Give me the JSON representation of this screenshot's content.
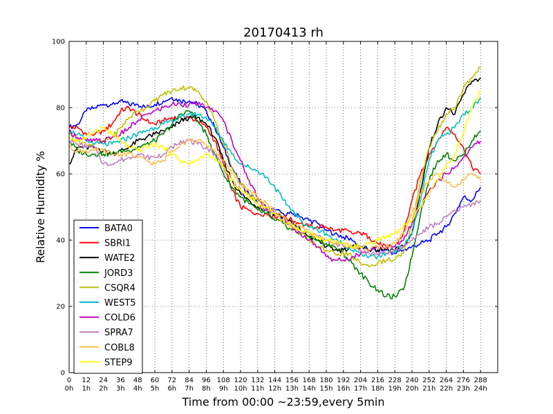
{
  "chart_data": {
    "type": "line",
    "title": "20170413 rh",
    "xlabel": "Time from 00:00 ~23:59,every 5min",
    "ylabel": "Relative Humidity %",
    "xlim": [
      0,
      300
    ],
    "ylim": [
      0,
      100
    ],
    "grid": true,
    "legend_position": "lower-left",
    "x_ticks": [
      {
        "value": 0,
        "line1": "0",
        "line2": "0h"
      },
      {
        "value": 12,
        "line1": "12",
        "line2": "1h"
      },
      {
        "value": 24,
        "line1": "24",
        "line2": "2h"
      },
      {
        "value": 36,
        "line1": "36",
        "line2": "3h"
      },
      {
        "value": 48,
        "line1": "48",
        "line2": "4h"
      },
      {
        "value": 60,
        "line1": "60",
        "line2": "5h"
      },
      {
        "value": 72,
        "line1": "72",
        "line2": "6h"
      },
      {
        "value": 84,
        "line1": "84",
        "line2": "7h"
      },
      {
        "value": 96,
        "line1": "96",
        "line2": "8h"
      },
      {
        "value": 108,
        "line1": "108",
        "line2": "9h"
      },
      {
        "value": 120,
        "line1": "120",
        "line2": "10h"
      },
      {
        "value": 132,
        "line1": "132",
        "line2": "11h"
      },
      {
        "value": 144,
        "line1": "144",
        "line2": "12h"
      },
      {
        "value": 156,
        "line1": "156",
        "line2": "13h"
      },
      {
        "value": 168,
        "line1": "168",
        "line2": "14h"
      },
      {
        "value": 180,
        "line1": "180",
        "line2": "15h"
      },
      {
        "value": 192,
        "line1": "192",
        "line2": "16h"
      },
      {
        "value": 204,
        "line1": "204",
        "line2": "17h"
      },
      {
        "value": 216,
        "line1": "216",
        "line2": "18h"
      },
      {
        "value": 228,
        "line1": "228",
        "line2": "19h"
      },
      {
        "value": 240,
        "line1": "240",
        "line2": "20h"
      },
      {
        "value": 252,
        "line1": "252",
        "line2": "21h"
      },
      {
        "value": 264,
        "line1": "264",
        "line2": "22h"
      },
      {
        "value": 276,
        "line1": "276",
        "line2": "23h"
      },
      {
        "value": 288,
        "line1": "288",
        "line2": "24h"
      }
    ],
    "y_ticks": [
      0,
      20,
      40,
      60,
      80,
      100
    ],
    "series": [
      {
        "name": "BATA0",
        "color": "#0000ff",
        "x": [
          0,
          6,
          12,
          18,
          24,
          30,
          36,
          42,
          48,
          54,
          60,
          66,
          72,
          78,
          84,
          90,
          96,
          102,
          108,
          114,
          120,
          126,
          132,
          138,
          144,
          150,
          156,
          162,
          168,
          174,
          180,
          186,
          192,
          198,
          204,
          210,
          216,
          222,
          228,
          234,
          240,
          246,
          252,
          258,
          264,
          270,
          276,
          282,
          288
        ],
        "y": [
          74,
          75,
          79,
          80,
          81,
          81,
          82,
          81,
          81,
          80,
          81,
          82,
          83,
          82,
          82,
          81,
          79,
          74,
          68,
          62,
          57,
          54,
          51,
          49,
          49,
          48,
          48,
          47,
          46,
          45,
          43,
          42,
          41,
          40,
          38,
          37,
          37,
          37,
          36,
          37,
          38,
          39,
          40,
          42,
          44,
          48,
          53,
          52,
          56
        ]
      },
      {
        "name": "SBRI1",
        "color": "#ff0000",
        "x": [
          0,
          6,
          12,
          18,
          24,
          30,
          36,
          42,
          48,
          54,
          60,
          66,
          72,
          78,
          84,
          90,
          96,
          102,
          108,
          114,
          120,
          126,
          132,
          138,
          144,
          150,
          156,
          162,
          168,
          174,
          180,
          186,
          192,
          198,
          204,
          210,
          216,
          222,
          228,
          234,
          240,
          246,
          252,
          258,
          264,
          270,
          276,
          282,
          288
        ],
        "y": [
          74,
          74,
          72,
          72,
          73,
          75,
          79,
          80,
          78,
          76,
          75,
          76,
          77,
          77,
          77,
          76,
          74,
          70,
          63,
          55,
          50,
          49,
          48,
          48,
          47,
          47,
          46,
          45,
          44,
          44,
          44,
          43,
          43,
          42,
          42,
          41,
          39,
          38,
          38,
          42,
          52,
          60,
          66,
          70,
          74,
          72,
          68,
          62,
          60
        ]
      },
      {
        "name": "WATE2",
        "color": "#000000",
        "x": [
          0,
          6,
          12,
          18,
          24,
          30,
          36,
          42,
          48,
          54,
          60,
          66,
          72,
          78,
          84,
          90,
          96,
          102,
          108,
          114,
          120,
          126,
          132,
          138,
          144,
          150,
          156,
          162,
          168,
          174,
          180,
          186,
          192,
          198,
          204,
          210,
          216,
          222,
          228,
          234,
          240,
          246,
          252,
          258,
          264,
          270,
          276,
          282,
          288
        ],
        "y": [
          63,
          68,
          68,
          68,
          67,
          66,
          67,
          68,
          70,
          71,
          72,
          73,
          74,
          76,
          77,
          77,
          75,
          71,
          64,
          58,
          54,
          52,
          50,
          49,
          48,
          47,
          45,
          43,
          41,
          40,
          38,
          37,
          37,
          38,
          38,
          37,
          37,
          37,
          37,
          38,
          42,
          55,
          68,
          75,
          80,
          78,
          84,
          88,
          89
        ]
      },
      {
        "name": "JORD3",
        "color": "#008000",
        "x": [
          0,
          6,
          12,
          18,
          24,
          30,
          36,
          42,
          48,
          54,
          60,
          66,
          72,
          78,
          84,
          90,
          96,
          102,
          108,
          114,
          120,
          126,
          132,
          138,
          144,
          150,
          156,
          162,
          168,
          174,
          180,
          186,
          192,
          198,
          204,
          210,
          216,
          222,
          228,
          234,
          240,
          246,
          252,
          258,
          264,
          270,
          276,
          282,
          288
        ],
        "y": [
          70,
          67,
          66,
          66,
          66,
          66,
          67,
          67,
          68,
          69,
          70,
          72,
          75,
          78,
          79,
          76,
          72,
          66,
          60,
          56,
          53,
          51,
          49,
          48,
          46,
          45,
          43,
          42,
          41,
          40,
          39,
          38,
          36,
          33,
          30,
          27,
          25,
          23,
          23,
          25,
          35,
          48,
          58,
          64,
          66,
          64,
          66,
          70,
          73
        ]
      },
      {
        "name": "CSQR4",
        "color": "#bfbf00",
        "x": [
          0,
          6,
          12,
          18,
          24,
          30,
          36,
          42,
          48,
          54,
          60,
          66,
          72,
          78,
          84,
          90,
          96,
          102,
          108,
          114,
          120,
          126,
          132,
          138,
          144,
          150,
          156,
          162,
          168,
          174,
          180,
          186,
          192,
          198,
          204,
          210,
          216,
          222,
          228,
          234,
          240,
          246,
          252,
          258,
          264,
          270,
          276,
          282,
          288
        ],
        "y": [
          72,
          70,
          69,
          69,
          70,
          71,
          74,
          77,
          79,
          80,
          82,
          84,
          85,
          86,
          86,
          85,
          82,
          76,
          69,
          62,
          57,
          54,
          52,
          50,
          48,
          46,
          44,
          42,
          40,
          38,
          37,
          36,
          36,
          35,
          33,
          32,
          33,
          34,
          34,
          36,
          45,
          58,
          68,
          73,
          78,
          80,
          86,
          89,
          92
        ]
      },
      {
        "name": "WEST5",
        "color": "#00bfbf",
        "x": [
          0,
          6,
          12,
          18,
          24,
          30,
          36,
          42,
          48,
          54,
          60,
          66,
          72,
          78,
          84,
          90,
          96,
          102,
          108,
          114,
          120,
          126,
          132,
          138,
          144,
          150,
          156,
          162,
          168,
          174,
          180,
          186,
          192,
          198,
          204,
          210,
          216,
          222,
          228,
          234,
          240,
          246,
          252,
          258,
          264,
          270,
          276,
          282,
          288
        ],
        "y": [
          73,
          72,
          70,
          69,
          69,
          69,
          70,
          71,
          72,
          73,
          74,
          75,
          76,
          77,
          78,
          78,
          77,
          74,
          70,
          66,
          63,
          62,
          61,
          59,
          56,
          52,
          49,
          46,
          44,
          43,
          42,
          40,
          39,
          37,
          36,
          35,
          35,
          36,
          37,
          38,
          42,
          52,
          64,
          70,
          72,
          74,
          78,
          80,
          83
        ]
      },
      {
        "name": "COLD6",
        "color": "#bf00bf",
        "x": [
          0,
          6,
          12,
          18,
          24,
          30,
          36,
          42,
          48,
          54,
          60,
          66,
          72,
          78,
          84,
          90,
          96,
          102,
          108,
          114,
          120,
          126,
          132,
          138,
          144,
          150,
          156,
          162,
          168,
          174,
          180,
          186,
          192,
          198,
          204,
          210,
          216,
          222,
          228,
          234,
          240,
          246,
          252,
          258,
          264,
          270,
          276,
          282,
          288
        ],
        "y": [
          73,
          71,
          70,
          70,
          70,
          71,
          72,
          74,
          76,
          78,
          79,
          80,
          81,
          81,
          81,
          81,
          80,
          79,
          76,
          70,
          64,
          58,
          53,
          50,
          48,
          46,
          44,
          42,
          40,
          38,
          35,
          34,
          34,
          35,
          36,
          37,
          38,
          38,
          38,
          40,
          45,
          50,
          55,
          58,
          60,
          62,
          65,
          68,
          70
        ]
      },
      {
        "name": "SPRA7",
        "color": "#bf7fbf",
        "x": [
          0,
          6,
          12,
          18,
          24,
          30,
          36,
          42,
          48,
          54,
          60,
          66,
          72,
          78,
          84,
          90,
          96,
          102,
          108,
          114,
          120,
          126,
          132,
          138,
          144,
          150,
          156,
          162,
          168,
          174,
          180,
          186,
          192,
          198,
          204,
          210,
          216,
          222,
          228,
          234,
          240,
          246,
          252,
          258,
          264,
          270,
          276,
          282,
          288
        ],
        "y": [
          70,
          69,
          68,
          68,
          63,
          63,
          64,
          65,
          66,
          65,
          65,
          66,
          68,
          70,
          70,
          69,
          68,
          66,
          62,
          58,
          55,
          53,
          51,
          49,
          48,
          46,
          44,
          43,
          42,
          41,
          40,
          39,
          38,
          38,
          37,
          36,
          36,
          36,
          37,
          38,
          40,
          42,
          44,
          45,
          47,
          49,
          50,
          51,
          52
        ]
      },
      {
        "name": "COBL8",
        "color": "#ffbf50",
        "x": [
          0,
          6,
          12,
          18,
          24,
          30,
          36,
          42,
          48,
          54,
          60,
          66,
          72,
          78,
          84,
          90,
          96,
          102,
          108,
          114,
          120,
          126,
          132,
          138,
          144,
          150,
          156,
          162,
          168,
          174,
          180,
          186,
          192,
          198,
          204,
          210,
          216,
          222,
          228,
          234,
          240,
          246,
          252,
          258,
          264,
          270,
          276,
          282,
          288
        ],
        "y": [
          68,
          67,
          67,
          67,
          67,
          66,
          66,
          66,
          65,
          64,
          63,
          64,
          67,
          69,
          70,
          70,
          69,
          67,
          64,
          60,
          57,
          55,
          53,
          51,
          49,
          47,
          45,
          44,
          42,
          41,
          40,
          39,
          39,
          38,
          38,
          37,
          38,
          38,
          39,
          42,
          48,
          54,
          58,
          60,
          58,
          56,
          58,
          60,
          58
        ]
      },
      {
        "name": "STEP9",
        "color": "#ffff00",
        "x": [
          0,
          6,
          12,
          18,
          24,
          30,
          36,
          42,
          48,
          54,
          60,
          66,
          72,
          78,
          84,
          90,
          96,
          102,
          108,
          114,
          120,
          126,
          132,
          138,
          144,
          150,
          156,
          162,
          168,
          174,
          180,
          186,
          192,
          198,
          204,
          210,
          216,
          222,
          228,
          234,
          240,
          246,
          252,
          258,
          264,
          270,
          276,
          282,
          288
        ],
        "y": [
          71,
          70,
          71,
          73,
          74,
          72,
          70,
          68,
          67,
          68,
          69,
          68,
          66,
          64,
          63,
          64,
          66,
          64,
          62,
          58,
          55,
          53,
          51,
          50,
          48,
          46,
          44,
          43,
          42,
          41,
          40,
          40,
          39,
          38,
          38,
          39,
          40,
          41,
          42,
          44,
          46,
          50,
          54,
          58,
          62,
          66,
          72,
          80,
          85
        ]
      }
    ]
  }
}
